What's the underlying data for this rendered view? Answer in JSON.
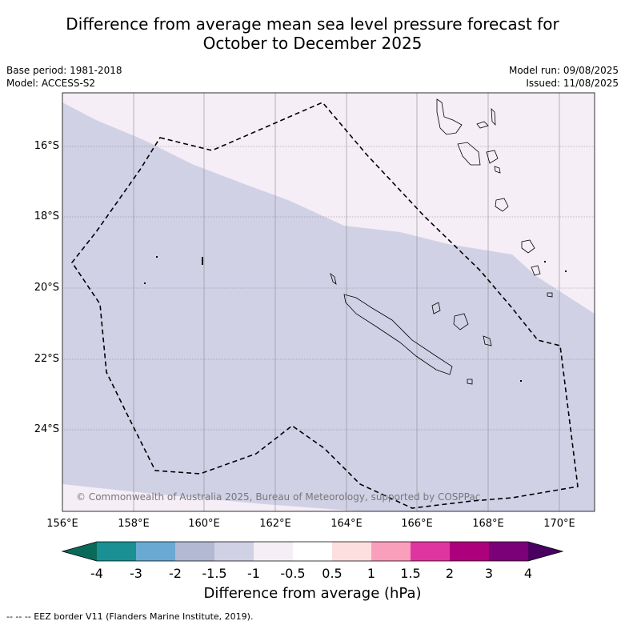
{
  "title_line1": "Difference from average mean sea level pressure forecast for",
  "title_line2": "October to December 2025",
  "base_period": "Base period: 1981-2018",
  "model": "Model: ACCESS-S2",
  "model_run": "Model run: 09/08/2025",
  "issued": "Issued: 11/08/2025",
  "copyright": "© Commonwealth of Australia 2025, Bureau of Meteorology, supported by COSPPac",
  "footnote": "--  --  -- EEZ border V11 (Flanders Marine Institute, 2019).",
  "colors": {
    "ocean_light": "#f5eef6",
    "ocean_mid": "#d1d1e6",
    "graticule": "#888888"
  },
  "lat_ticks": [
    "16°S",
    "18°S",
    "20°S",
    "22°S",
    "24°S"
  ],
  "lon_ticks": [
    "156°E",
    "158°E",
    "160°E",
    "162°E",
    "164°E",
    "166°E",
    "168°E",
    "170°E"
  ],
  "colorbar": {
    "label": "Difference from average (hPa)",
    "tick_labels": [
      "-4",
      "-3",
      "-2",
      "-1.5",
      "-1",
      "-0.5",
      "0.5",
      "1",
      "1.5",
      "2",
      "3",
      "4"
    ],
    "colors": [
      "#1a8f94",
      "#6aaad2",
      "#b3b9d3",
      "#d1d1e6",
      "#f5eef6",
      "#ffffff",
      "#fedfdf",
      "#f99fbb",
      "#de35a0",
      "#ac007d",
      "#7a0177"
    ],
    "low_extend_color": "#0a6a5a",
    "high_extend_color": "#4a0060"
  }
}
